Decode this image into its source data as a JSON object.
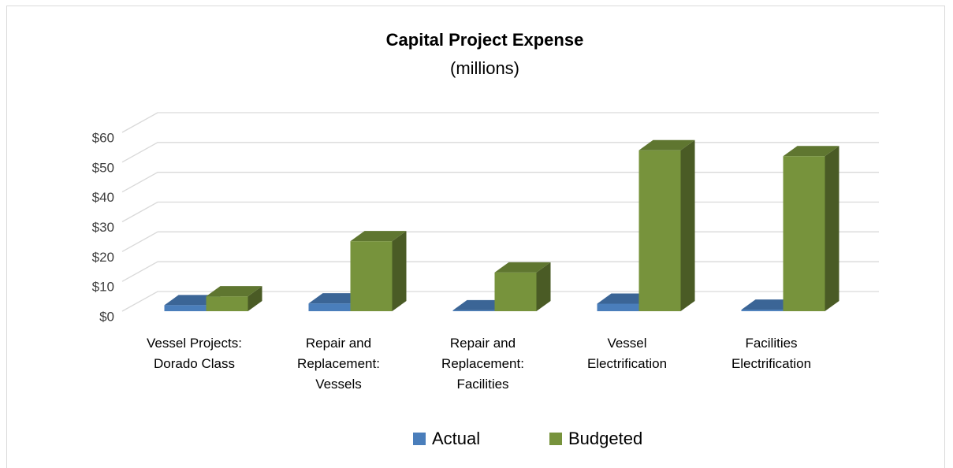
{
  "chart_data": {
    "type": "bar3d",
    "title": "Capital Project Expense",
    "subtitle": "(millions)",
    "categories": [
      "Vessel Projects: Dorado Class",
      "Repair and Replacement: Vessels",
      "Repair and Replacement: Facilities",
      "Vessel Electrification",
      "Facilities Electrification"
    ],
    "series": [
      {
        "name": "Actual",
        "color": "#4a7ebb",
        "values": [
          2,
          2.6,
          0.3,
          2.5,
          0.5
        ]
      },
      {
        "name": "Budgeted",
        "color": "#77933c",
        "values": [
          5,
          23.5,
          13,
          54,
          52
        ]
      }
    ],
    "ylim": [
      0,
      60
    ],
    "yticks": [
      {
        "value": 0,
        "label": "$0"
      },
      {
        "value": 10,
        "label": "$10"
      },
      {
        "value": 20,
        "label": "$20"
      },
      {
        "value": 30,
        "label": "$30"
      },
      {
        "value": 40,
        "label": "$40"
      },
      {
        "value": 50,
        "label": "$50"
      },
      {
        "value": 60,
        "label": "$60"
      }
    ],
    "grid": true,
    "legend": "bottom"
  }
}
